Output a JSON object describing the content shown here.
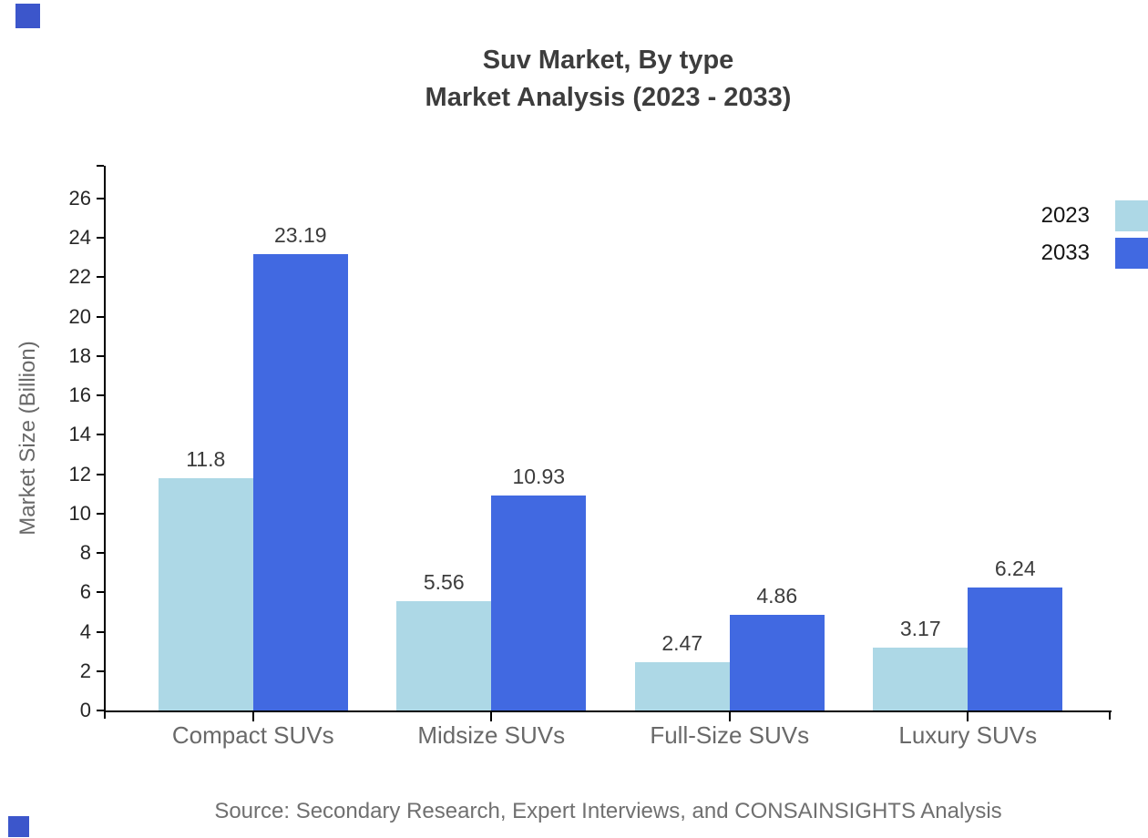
{
  "title": {
    "line1": "Suv Market, By type",
    "line2": "Market Analysis (2023 - 2033)"
  },
  "chart_data": {
    "type": "bar",
    "categories": [
      "Compact SUVs",
      "Midsize SUVs",
      "Full-Size SUVs",
      "Luxury SUVs"
    ],
    "series": [
      {
        "name": "2023",
        "color": "#ADD8E6",
        "values": [
          11.8,
          5.56,
          2.47,
          3.17
        ]
      },
      {
        "name": "2033",
        "color": "#4169E1",
        "values": [
          23.19,
          10.93,
          4.86,
          6.24
        ]
      }
    ],
    "ylabel": "Market Size (Billion)",
    "ylim": [
      0,
      26
    ],
    "ytick_step": 2,
    "grid": false,
    "legend_position": "top-right",
    "value_label_format": "as-written"
  },
  "source_note": "Source: Secondary Research, Expert Interviews, and CONSAINSIGHTS Analysis",
  "colors": {
    "axis": "#000000",
    "tick_label": "#262626",
    "category_label": "#696969",
    "value_label": "#3c3c3c",
    "title": "#3d3d3d",
    "source": "#707070",
    "corner_mark": "#3C56CB"
  }
}
